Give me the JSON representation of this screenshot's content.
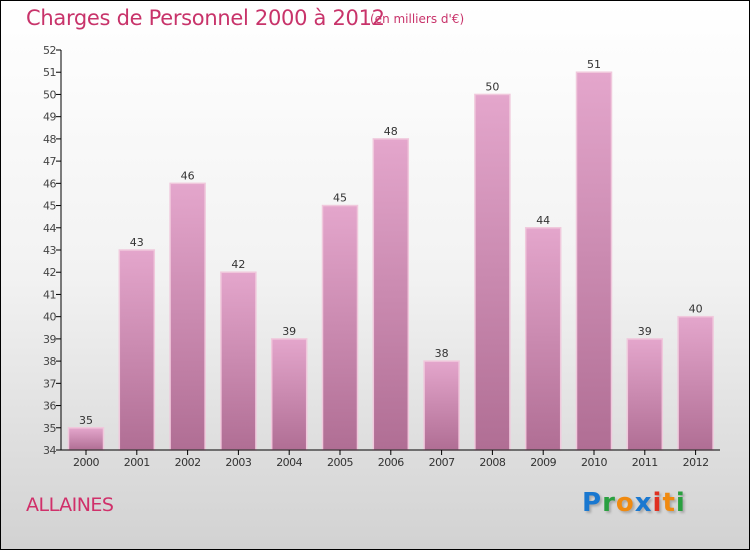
{
  "chart_data": {
    "type": "bar",
    "title": "Charges de Personnel 2000 à 2012",
    "subtitle": "(en milliers d'€)",
    "categories": [
      "2000",
      "2001",
      "2002",
      "2003",
      "2004",
      "2005",
      "2006",
      "2007",
      "2008",
      "2009",
      "2010",
      "2011",
      "2012"
    ],
    "values": [
      35,
      43,
      46,
      42,
      39,
      45,
      48,
      38,
      50,
      44,
      51,
      39,
      40
    ],
    "ylim": [
      34,
      52
    ],
    "yticks": [
      34,
      35,
      36,
      37,
      38,
      39,
      40,
      41,
      42,
      43,
      44,
      45,
      46,
      47,
      48,
      49,
      50,
      51,
      52
    ],
    "xlabel": "",
    "ylabel": "",
    "bar_color_top": "#e4a6cc",
    "bar_color_bottom": "#b06e94"
  },
  "location": "ALLAINES",
  "logo": {
    "text": "Proxiti",
    "letters": [
      {
        "c": "P",
        "color": "#1a78d0"
      },
      {
        "c": "r",
        "color": "#2aa040"
      },
      {
        "c": "o",
        "color": "#f08a10"
      },
      {
        "c": "x",
        "color": "#1a78d0"
      },
      {
        "c": "i",
        "color": "#e03020"
      },
      {
        "c": "t",
        "color": "#f08a10"
      },
      {
        "c": "i",
        "color": "#2aa040"
      }
    ]
  }
}
